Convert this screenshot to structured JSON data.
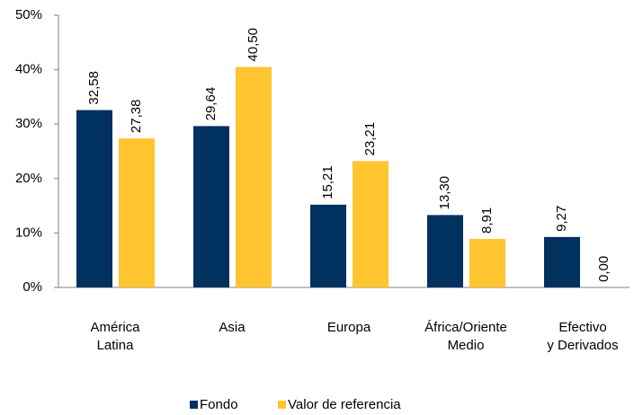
{
  "chart_data": {
    "type": "bar",
    "categories": [
      [
        "América",
        "Latina"
      ],
      [
        "Asia"
      ],
      [
        "Europa"
      ],
      [
        "África/Oriente",
        "Medio"
      ],
      [
        "Efectivo",
        "y Derivados"
      ]
    ],
    "series": [
      {
        "name": "Fondo",
        "color": "#00315f",
        "values": [
          32.58,
          29.64,
          15.21,
          13.3,
          9.27
        ],
        "value_labels": [
          "32,58",
          "29,64",
          "15,21",
          "13,30",
          "9,27"
        ]
      },
      {
        "name": "Valor de referencia",
        "color": "#fec52e",
        "values": [
          27.38,
          40.5,
          23.21,
          8.91,
          0.0
        ],
        "value_labels": [
          "27,38",
          "40,50",
          "23,21",
          "8,91",
          "0,00"
        ]
      }
    ],
    "ylim": [
      0,
      50
    ],
    "yticks": [
      {
        "value": 0,
        "label": "0%"
      },
      {
        "value": 10,
        "label": "10%"
      },
      {
        "value": 20,
        "label": "20%"
      },
      {
        "value": 30,
        "label": "30%"
      },
      {
        "value": 40,
        "label": "40%"
      },
      {
        "value": 50,
        "label": "50%"
      }
    ],
    "legend": "bottom"
  }
}
